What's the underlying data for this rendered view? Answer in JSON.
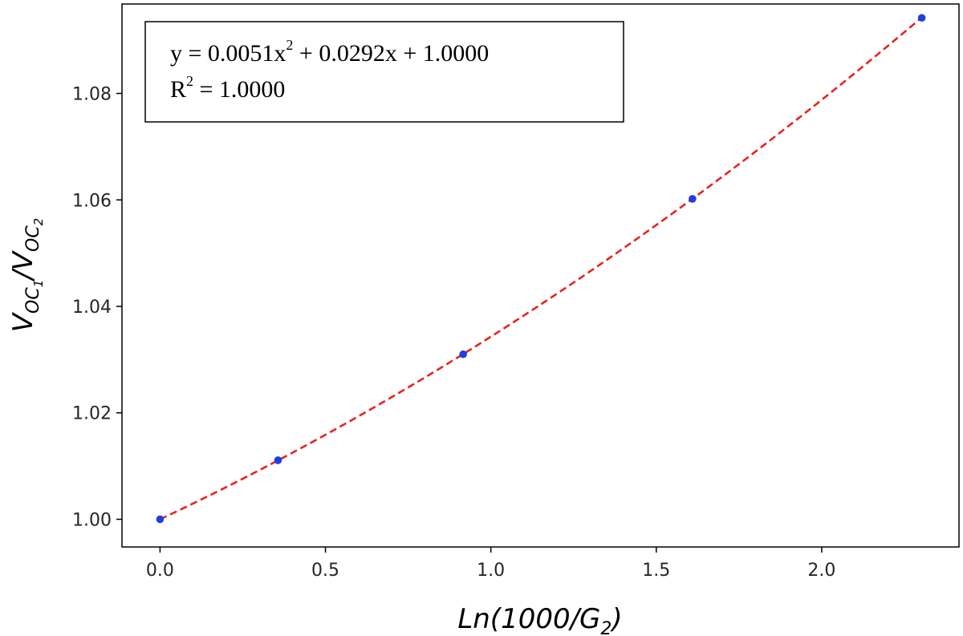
{
  "chart_data": {
    "type": "scatter",
    "xlabel": {
      "base": "Ln(1000/G",
      "sub": "2",
      "tail": ")"
    },
    "ylabel": {
      "v1": "V",
      "sub1": "OC",
      "subsub1": "1",
      "slash": "/",
      "v2": "V",
      "sub2": "OC",
      "subsub2": "2"
    },
    "xlim": [
      -0.115,
      2.415
    ],
    "ylim": [
      0.9948,
      1.0968
    ],
    "xticks": [
      0.0,
      0.5,
      1.0,
      1.5,
      2.0
    ],
    "xtick_labels": [
      "0.0",
      "0.5",
      "1.0",
      "1.5",
      "2.0"
    ],
    "yticks": [
      1.0,
      1.02,
      1.04,
      1.06,
      1.08
    ],
    "ytick_labels": [
      "1.00",
      "1.02",
      "1.04",
      "1.06",
      "1.08"
    ],
    "series": [
      {
        "marker_color": "#1f3fe0",
        "x": [
          0.0,
          0.3567,
          0.9163,
          1.6094,
          2.3026
        ],
        "y": [
          1.0,
          1.0111,
          1.031,
          1.0602,
          1.0942
        ]
      }
    ],
    "fit": {
      "type": "polynomial",
      "coefficients": [
        0.0051,
        0.0292,
        1.0
      ],
      "line_color": "#e8231e",
      "line_style": "dashed",
      "x_range": [
        0.0,
        2.3026
      ]
    },
    "annotation": {
      "line1": {
        "pre": "y = 0.0051x",
        "sup": "2",
        "post": " + 0.0292x + 1.0000"
      },
      "line2": {
        "pre": "R",
        "sup": "2",
        "post": " = 1.0000"
      }
    },
    "grid": false,
    "legend": "none"
  }
}
